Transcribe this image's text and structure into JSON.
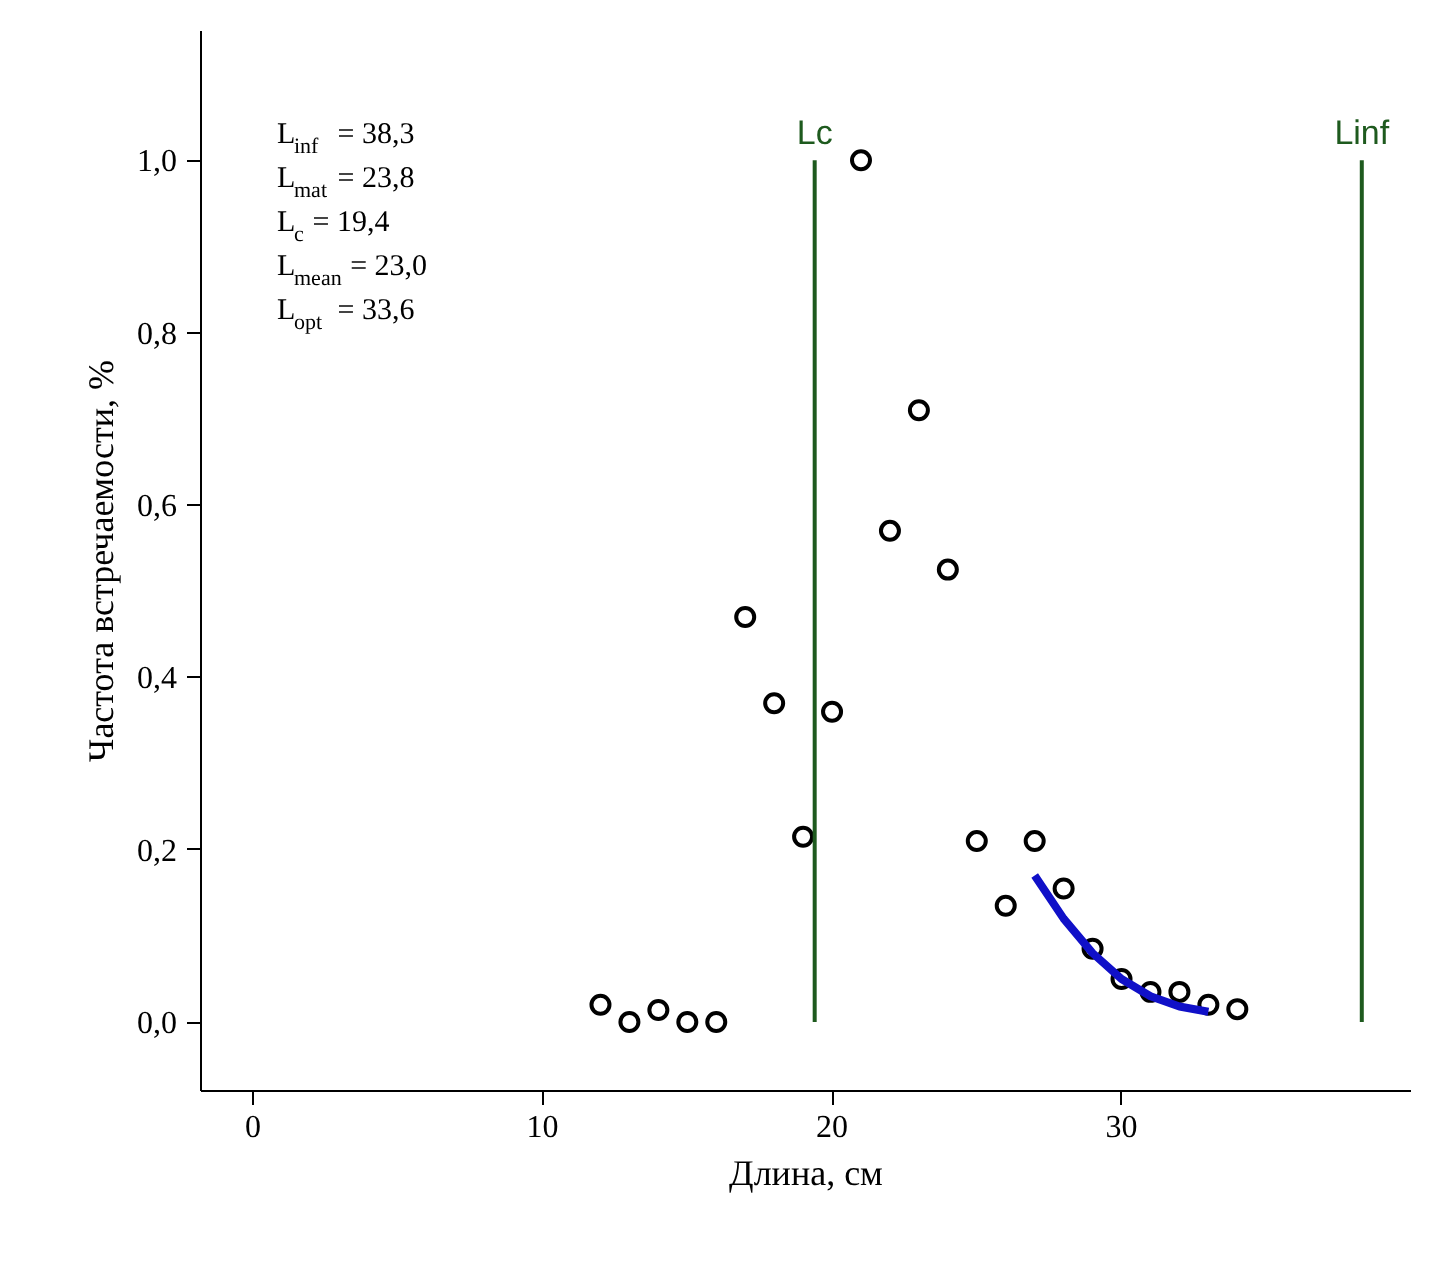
{
  "chart_data": {
    "type": "scatter",
    "xlabel": "Длина, см",
    "ylabel": "Частота встречаемости, %",
    "xlim": [
      -1.8,
      40
    ],
    "ylim": [
      -0.08,
      1.15
    ],
    "xticks": [
      0,
      10,
      20,
      30
    ],
    "yticks": [
      {
        "value": 0,
        "label": "0,0"
      },
      {
        "value": 0.2,
        "label": "0,2"
      },
      {
        "value": 0.4,
        "label": "0,4"
      },
      {
        "value": 0.6,
        "label": "0,6"
      },
      {
        "value": 0.8,
        "label": "0,8"
      },
      {
        "value": 1.0,
        "label": "1,0"
      }
    ],
    "grid": false,
    "marker": "circle",
    "series": [
      {
        "type": "scatter",
        "color": "#000000",
        "x": [
          12,
          13,
          14,
          15,
          16,
          17,
          18,
          19,
          20,
          21,
          22,
          23,
          24,
          25,
          26,
          27,
          28,
          29,
          30,
          31,
          32,
          33,
          34
        ],
        "values": [
          0.02,
          0,
          0.014,
          0,
          0,
          0.47,
          0.37,
          0.215,
          0.36,
          1.0,
          0.57,
          0.71,
          0.525,
          0.21,
          0.135,
          0.21,
          0.155,
          0.085,
          0.05,
          0.035,
          0.035,
          0.02,
          0.015
        ]
      },
      {
        "type": "line",
        "color": "#1010c8",
        "marker": "none",
        "line_style": "solid",
        "x": [
          27,
          28,
          29,
          30,
          31,
          32,
          33
        ],
        "values": [
          0.17,
          0.12,
          0.08,
          0.05,
          0.03,
          0.018,
          0.012
        ]
      }
    ],
    "ref_lines": [
      {
        "axis": "x",
        "value": 19.4,
        "label": "Lc",
        "color": "#1e5a1e"
      },
      {
        "axis": "x",
        "value": 38.3,
        "label": "Linf",
        "color": "#1e5a1e"
      }
    ],
    "annotations": [
      "L$_{inf}$ = 38,3",
      "L$_{mat}$ = 23,8",
      "L$_{c}$ = 19,4",
      "L$_{mean}$ = 23,0",
      "L$_{opt}$ = 33,6"
    ]
  }
}
